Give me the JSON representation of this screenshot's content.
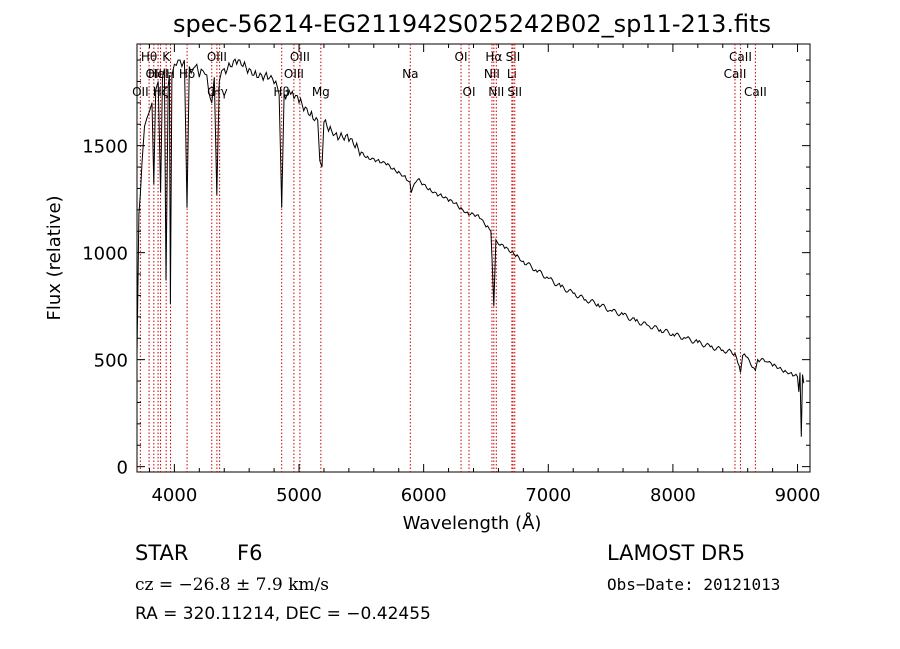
{
  "chart_data": {
    "type": "line",
    "title": "spec-56214-EG211942S025242B02_sp11-213.fits",
    "xlabel": "Wavelength (Å)",
    "ylabel": "Flux (relative)",
    "xlim": [
      3700,
      9100
    ],
    "ylim": [
      -25,
      1975
    ],
    "xticks": [
      4000,
      5000,
      6000,
      7000,
      8000,
      9000
    ],
    "yticks": [
      0,
      500,
      1000,
      1500
    ],
    "grid": false,
    "series": [
      {
        "points": [
          [
            3700,
            520
          ],
          [
            3715,
            1180
          ],
          [
            3740,
            1420
          ],
          [
            3760,
            1590
          ],
          [
            3780,
            1630
          ],
          [
            3800,
            1660
          ],
          [
            3820,
            1700
          ],
          [
            3835,
            1320
          ],
          [
            3850,
            1760
          ],
          [
            3870,
            1800
          ],
          [
            3889,
            1280
          ],
          [
            3905,
            1820
          ],
          [
            3920,
            1860
          ],
          [
            3933,
            870
          ],
          [
            3950,
            1780
          ],
          [
            3960,
            1830
          ],
          [
            3968,
            760
          ],
          [
            3980,
            1830
          ],
          [
            4000,
            1880
          ],
          [
            4030,
            1900
          ],
          [
            4060,
            1870
          ],
          [
            4080,
            1900
          ],
          [
            4101,
            1210
          ],
          [
            4120,
            1870
          ],
          [
            4150,
            1860
          ],
          [
            4180,
            1880
          ],
          [
            4200,
            1820
          ],
          [
            4230,
            1850
          ],
          [
            4260,
            1830
          ],
          [
            4300,
            1700
          ],
          [
            4320,
            1820
          ],
          [
            4340,
            1270
          ],
          [
            4360,
            1800
          ],
          [
            4380,
            1850
          ],
          [
            4400,
            1860
          ],
          [
            4450,
            1870
          ],
          [
            4500,
            1880
          ],
          [
            4550,
            1870
          ],
          [
            4600,
            1860
          ],
          [
            4650,
            1850
          ],
          [
            4700,
            1830
          ],
          [
            4750,
            1810
          ],
          [
            4800,
            1790
          ],
          [
            4840,
            1740
          ],
          [
            4861,
            1210
          ],
          [
            4880,
            1740
          ],
          [
            4920,
            1760
          ],
          [
            4960,
            1720
          ],
          [
            5000,
            1700
          ],
          [
            5050,
            1680
          ],
          [
            5100,
            1660
          ],
          [
            5150,
            1620
          ],
          [
            5167,
            1430
          ],
          [
            5184,
            1400
          ],
          [
            5200,
            1610
          ],
          [
            5250,
            1590
          ],
          [
            5300,
            1560
          ],
          [
            5350,
            1540
          ],
          [
            5400,
            1520
          ],
          [
            5450,
            1490
          ],
          [
            5500,
            1470
          ],
          [
            5550,
            1450
          ],
          [
            5600,
            1440
          ],
          [
            5650,
            1420
          ],
          [
            5700,
            1410
          ],
          [
            5750,
            1390
          ],
          [
            5800,
            1380
          ],
          [
            5850,
            1360
          ],
          [
            5890,
            1330
          ],
          [
            5900,
            1280
          ],
          [
            5950,
            1340
          ],
          [
            6000,
            1320
          ],
          [
            6050,
            1300
          ],
          [
            6100,
            1280
          ],
          [
            6150,
            1260
          ],
          [
            6200,
            1240
          ],
          [
            6250,
            1230
          ],
          [
            6300,
            1210
          ],
          [
            6350,
            1190
          ],
          [
            6400,
            1180
          ],
          [
            6450,
            1160
          ],
          [
            6500,
            1120
          ],
          [
            6540,
            1100
          ],
          [
            6563,
            750
          ],
          [
            6580,
            1060
          ],
          [
            6600,
            1040
          ],
          [
            6650,
            1020
          ],
          [
            6700,
            1000
          ],
          [
            6750,
            990
          ],
          [
            6800,
            960
          ],
          [
            6900,
            920
          ],
          [
            7000,
            880
          ],
          [
            7100,
            840
          ],
          [
            7200,
            810
          ],
          [
            7300,
            780
          ],
          [
            7400,
            760
          ],
          [
            7500,
            730
          ],
          [
            7600,
            710
          ],
          [
            7700,
            680
          ],
          [
            7800,
            660
          ],
          [
            7900,
            640
          ],
          [
            8000,
            620
          ],
          [
            8100,
            600
          ],
          [
            8200,
            580
          ],
          [
            8300,
            560
          ],
          [
            8400,
            545
          ],
          [
            8498,
            530
          ],
          [
            8510,
            510
          ],
          [
            8542,
            440
          ],
          [
            8560,
            520
          ],
          [
            8600,
            510
          ],
          [
            8662,
            450
          ],
          [
            8680,
            500
          ],
          [
            8750,
            490
          ],
          [
            8800,
            470
          ],
          [
            8850,
            460
          ],
          [
            8900,
            450
          ],
          [
            8950,
            440
          ],
          [
            9000,
            420
          ],
          [
            9010,
            350
          ],
          [
            9020,
            440
          ],
          [
            9030,
            140
          ],
          [
            9040,
            430
          ],
          [
            9050,
            390
          ]
        ]
      }
    ],
    "line_markers": [
      {
        "wavelength": 3727,
        "label": "OII",
        "row": 3
      },
      {
        "wavelength": 3797,
        "label": "Hθ",
        "row": 1
      },
      {
        "wavelength": 3835,
        "label": "OII",
        "row": 2
      },
      {
        "wavelength": 3869,
        "label": "Hel",
        "row": 2
      },
      {
        "wavelength": 3889,
        "label": "Hζ",
        "row": 3
      },
      {
        "wavelength": 3934,
        "label": "K",
        "row": 1
      },
      {
        "wavelength": 3969,
        "label": "H",
        "row": 2
      },
      {
        "wavelength": 4102,
        "label": "Hδ",
        "row": 2
      },
      {
        "wavelength": 4300,
        "label": "G",
        "row": 3
      },
      {
        "wavelength": 4341,
        "label": "OIII",
        "row": 1
      },
      {
        "wavelength": 4363,
        "label": "Hγ",
        "row": 3
      },
      {
        "wavelength": 4861,
        "label": "Hβ",
        "row": 3
      },
      {
        "wavelength": 4959,
        "label": "OIII",
        "row": 2
      },
      {
        "wavelength": 5007,
        "label": "OIII",
        "row": 1
      },
      {
        "wavelength": 5175,
        "label": "Mg",
        "row": 3
      },
      {
        "wavelength": 5893,
        "label": "Na",
        "row": 2
      },
      {
        "wavelength": 6300,
        "label": "OI",
        "row": 1
      },
      {
        "wavelength": 6364,
        "label": "OI",
        "row": 3
      },
      {
        "wavelength": 6548,
        "label": "NII",
        "row": 2
      },
      {
        "wavelength": 6563,
        "label": "Hα",
        "row": 1
      },
      {
        "wavelength": 6583,
        "label": "NII",
        "row": 3
      },
      {
        "wavelength": 6708,
        "label": "Li",
        "row": 2
      },
      {
        "wavelength": 6717,
        "label": "SII",
        "row": 1
      },
      {
        "wavelength": 6731,
        "label": "SII",
        "row": 3
      },
      {
        "wavelength": 8498,
        "label": "CaII",
        "row": 2
      },
      {
        "wavelength": 8542,
        "label": "CaII",
        "row": 1
      },
      {
        "wavelength": 8662,
        "label": "CaII",
        "row": 3
      }
    ],
    "marker_color": "#cc0000"
  },
  "info": {
    "object_type": "STAR",
    "subclass": "F6",
    "survey": "LAMOST DR5",
    "redshift": "cz = −26.8 ± 7.9 km/s",
    "obs_date": "Obs−Date: 20121013",
    "coords": "RA = 320.11214, DEC =  −0.42455"
  }
}
